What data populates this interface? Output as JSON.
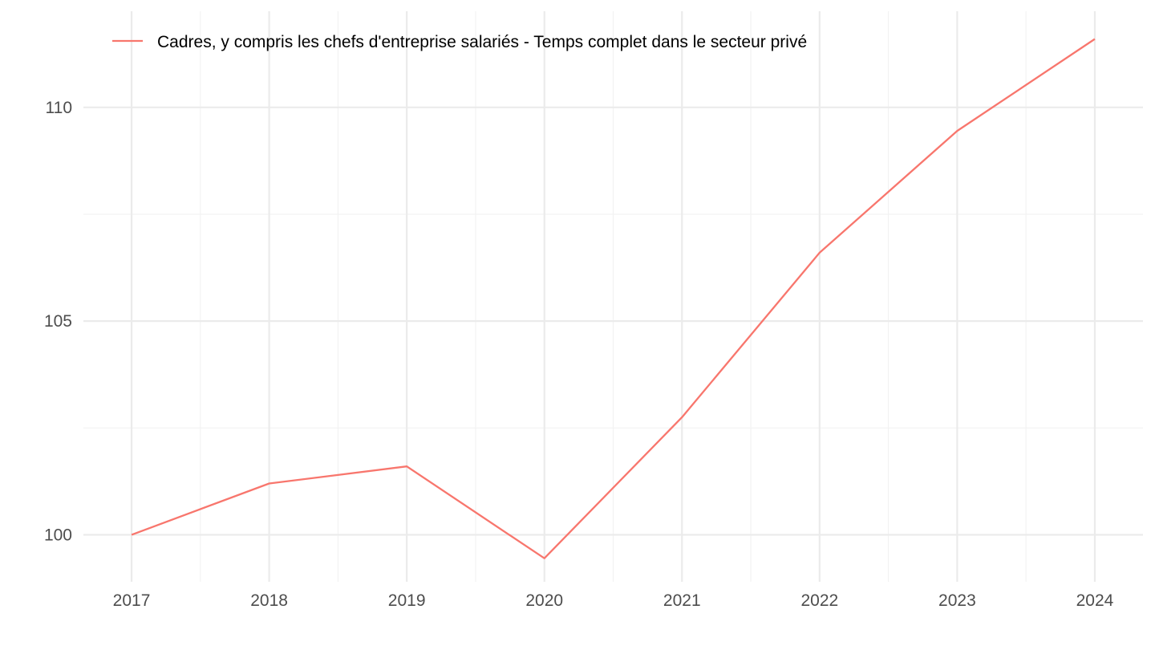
{
  "chart_data": {
    "type": "line",
    "x": [
      2017,
      2018,
      2019,
      2020,
      2021,
      2022,
      2023,
      2024
    ],
    "series": [
      {
        "name": "Cadres, y compris les chefs d'entreprise salariés - Temps complet dans le secteur privé",
        "values": [
          100.0,
          101.2,
          101.6,
          99.45,
          102.75,
          106.6,
          109.45,
          111.6
        ],
        "color": "#F8766D"
      }
    ],
    "xticks": [
      "2017",
      "2018",
      "2019",
      "2020",
      "2021",
      "2022",
      "2023",
      "2024"
    ],
    "yticks": [
      "100",
      "105",
      "110"
    ],
    "ylim": [
      98.9,
      112.25
    ],
    "xlim": [
      2016.65,
      2024.35
    ],
    "title": "",
    "xlabel": "",
    "ylabel": "",
    "legend_position": "top-left",
    "grid": true,
    "background": "#ffffff"
  }
}
